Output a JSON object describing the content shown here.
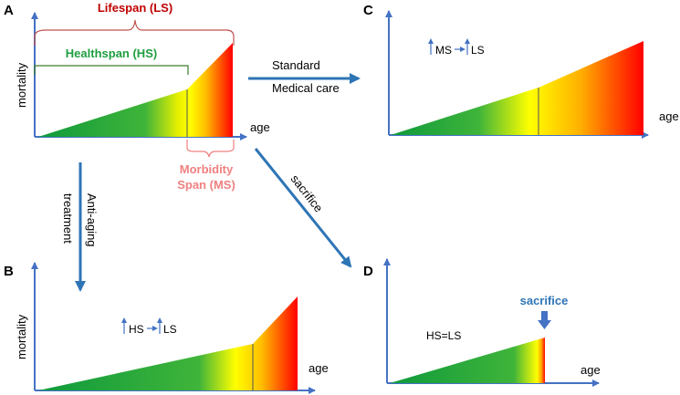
{
  "panels": {
    "A": {
      "letter": "A",
      "ylabel": "mortality",
      "xlabel": "age"
    },
    "B": {
      "letter": "B",
      "ylabel": "mortality",
      "xlabel": "age"
    },
    "C": {
      "letter": "C",
      "xlabel": "age"
    },
    "D": {
      "letter": "D",
      "xlabel": "age"
    }
  },
  "spans": {
    "lifespan": "Lifespan (LS)",
    "healthspan": "Healthspan (HS)",
    "morbidity_line1": "Morbidity",
    "morbidity_line2": "Span (MS)"
  },
  "transitions": {
    "standard_line1": "Standard",
    "standard_line2": "Medical care",
    "antiaging_line1": "Anti-aging",
    "antiaging_line2": "treatment",
    "sacrifice": "sacrifice"
  },
  "annotations": {
    "c_ms": "MS",
    "c_ls": "LS",
    "b_hs": "HS",
    "b_ls": "LS",
    "d_eq": "HS=LS",
    "d_sacrifice": "sacrifice"
  },
  "colors": {
    "axis": "#4472c4",
    "arrow": "#2e75b6",
    "green": "#1a9a3a",
    "yellow": "#ffff00",
    "orange": "#ff9900",
    "red": "#ff0000",
    "lifespan_bracket": "#c0504d",
    "healthspan_bracket": "#3a7d2c",
    "morbidity_bracket": "#f08080"
  }
}
